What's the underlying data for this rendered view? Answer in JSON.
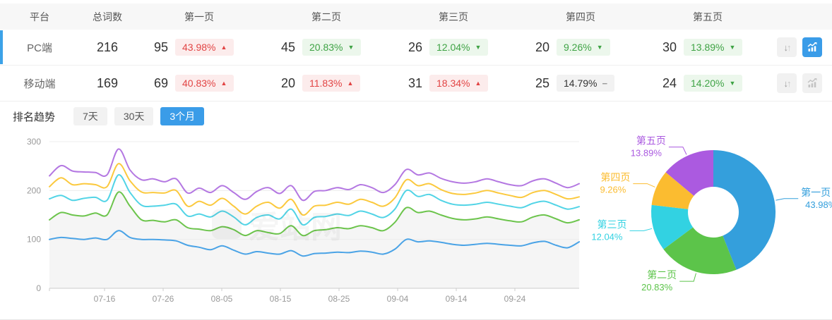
{
  "table": {
    "headers": [
      "平台",
      "总词数",
      "第一页",
      "第二页",
      "第三页",
      "第四页",
      "第五页"
    ],
    "rows": [
      {
        "platform": "PC端",
        "total": "216",
        "selected": true,
        "trend_button_active": true,
        "pages": [
          {
            "count": "95",
            "pct": "43.98%",
            "dir": "up",
            "tone": "red"
          },
          {
            "count": "45",
            "pct": "20.83%",
            "dir": "down",
            "tone": "green"
          },
          {
            "count": "26",
            "pct": "12.04%",
            "dir": "down",
            "tone": "green"
          },
          {
            "count": "20",
            "pct": "9.26%",
            "dir": "down",
            "tone": "green"
          },
          {
            "count": "30",
            "pct": "13.89%",
            "dir": "down",
            "tone": "green"
          }
        ]
      },
      {
        "platform": "移动端",
        "total": "169",
        "selected": false,
        "trend_button_active": false,
        "pages": [
          {
            "count": "69",
            "pct": "40.83%",
            "dir": "up",
            "tone": "red"
          },
          {
            "count": "20",
            "pct": "11.83%",
            "dir": "up",
            "tone": "red"
          },
          {
            "count": "31",
            "pct": "18.34%",
            "dir": "up",
            "tone": "red"
          },
          {
            "count": "25",
            "pct": "14.79%",
            "dir": "flat",
            "tone": "gray"
          },
          {
            "count": "24",
            "pct": "14.20%",
            "dir": "down",
            "tone": "green"
          }
        ]
      }
    ]
  },
  "icons": {
    "sort": "up-down-arrows-icon",
    "trend": "line-chart-icon",
    "up": "triangle-up-icon",
    "down": "triangle-down-icon",
    "flat": "minus-icon"
  },
  "trend_section": {
    "title": "排名趋势",
    "tabs": [
      {
        "label": "7天",
        "active": false
      },
      {
        "label": "30天",
        "active": false
      },
      {
        "label": "3个月",
        "active": true
      }
    ],
    "watermark": "爱站网"
  },
  "colors": {
    "accent": "#3a9ce8",
    "rise_red": "#e24444",
    "fall_green": "#3fa345",
    "selected_row_bar": "#3ca2e8",
    "line_series": [
      "#4aa3e6",
      "#6cc44c",
      "#52d4e6",
      "#fbc93e",
      "#b478e2"
    ],
    "donut_series": [
      "#349fdc",
      "#5cc44a",
      "#32d2e2",
      "#fbbc30",
      "#ab5ae0"
    ]
  },
  "chart_data": [
    {
      "type": "line",
      "title": "排名趋势 3个月",
      "x_ticks": [
        "07-16",
        "07-26",
        "08-05",
        "08-15",
        "08-25",
        "09-04",
        "09-14",
        "09-24"
      ],
      "y_ticks": [
        0,
        100,
        200,
        300
      ],
      "ylim": [
        0,
        300
      ],
      "grid": true,
      "stacked_cumulative": true,
      "legend_position": "none",
      "series": [
        {
          "name": "第一页",
          "values": [
            100,
            104,
            102,
            100,
            103,
            100,
            118,
            104,
            100,
            100,
            99,
            97,
            88,
            84,
            79,
            87,
            78,
            70,
            75,
            72,
            70,
            77,
            66,
            71,
            72,
            74,
            73,
            76,
            74,
            70,
            80,
            100,
            95,
            97,
            94,
            90,
            88,
            90,
            92,
            90,
            88,
            87,
            93,
            96,
            88,
            83,
            95
          ]
        },
        {
          "name": "第二页",
          "values": [
            140,
            155,
            150,
            148,
            154,
            150,
            197,
            168,
            140,
            139,
            136,
            140,
            124,
            121,
            118,
            126,
            120,
            108,
            118,
            114,
            112,
            128,
            108,
            118,
            120,
            124,
            122,
            128,
            124,
            118,
            135,
            165,
            155,
            158,
            150,
            143,
            140,
            142,
            146,
            142,
            138,
            136,
            146,
            150,
            142,
            134,
            140
          ]
        },
        {
          "name": "第三页",
          "values": [
            183,
            190,
            180,
            184,
            186,
            180,
            232,
            196,
            170,
            168,
            170,
            172,
            148,
            152,
            146,
            158,
            146,
            130,
            145,
            150,
            142,
            162,
            130,
            145,
            147,
            152,
            149,
            158,
            152,
            145,
            162,
            200,
            188,
            192,
            180,
            172,
            170,
            172,
            176,
            172,
            168,
            165,
            174,
            178,
            170,
            162,
            167
          ]
        },
        {
          "name": "第四页",
          "values": [
            208,
            226,
            212,
            214,
            212,
            208,
            255,
            220,
            197,
            196,
            195,
            200,
            168,
            178,
            170,
            184,
            168,
            152,
            168,
            176,
            164,
            182,
            150,
            168,
            170,
            176,
            172,
            182,
            176,
            168,
            185,
            222,
            210,
            214,
            202,
            194,
            192,
            195,
            200,
            195,
            190,
            186,
            196,
            200,
            192,
            183,
            187
          ]
        },
        {
          "name": "第五页",
          "values": [
            230,
            251,
            240,
            238,
            237,
            232,
            285,
            242,
            222,
            224,
            218,
            224,
            195,
            205,
            196,
            210,
            196,
            182,
            198,
            206,
            194,
            210,
            180,
            198,
            200,
            206,
            202,
            212,
            206,
            196,
            212,
            243,
            232,
            236,
            225,
            218,
            215,
            218,
            224,
            218,
            212,
            210,
            220,
            224,
            215,
            206,
            214
          ]
        }
      ]
    },
    {
      "type": "pie",
      "subtype": "donut",
      "labels": [
        "第一页",
        "第二页",
        "第三页",
        "第四页",
        "第五页"
      ],
      "values": [
        43.98,
        20.83,
        12.04,
        9.26,
        13.89
      ],
      "unit": "%",
      "start_angle": "top",
      "direction": "clockwise"
    }
  ]
}
